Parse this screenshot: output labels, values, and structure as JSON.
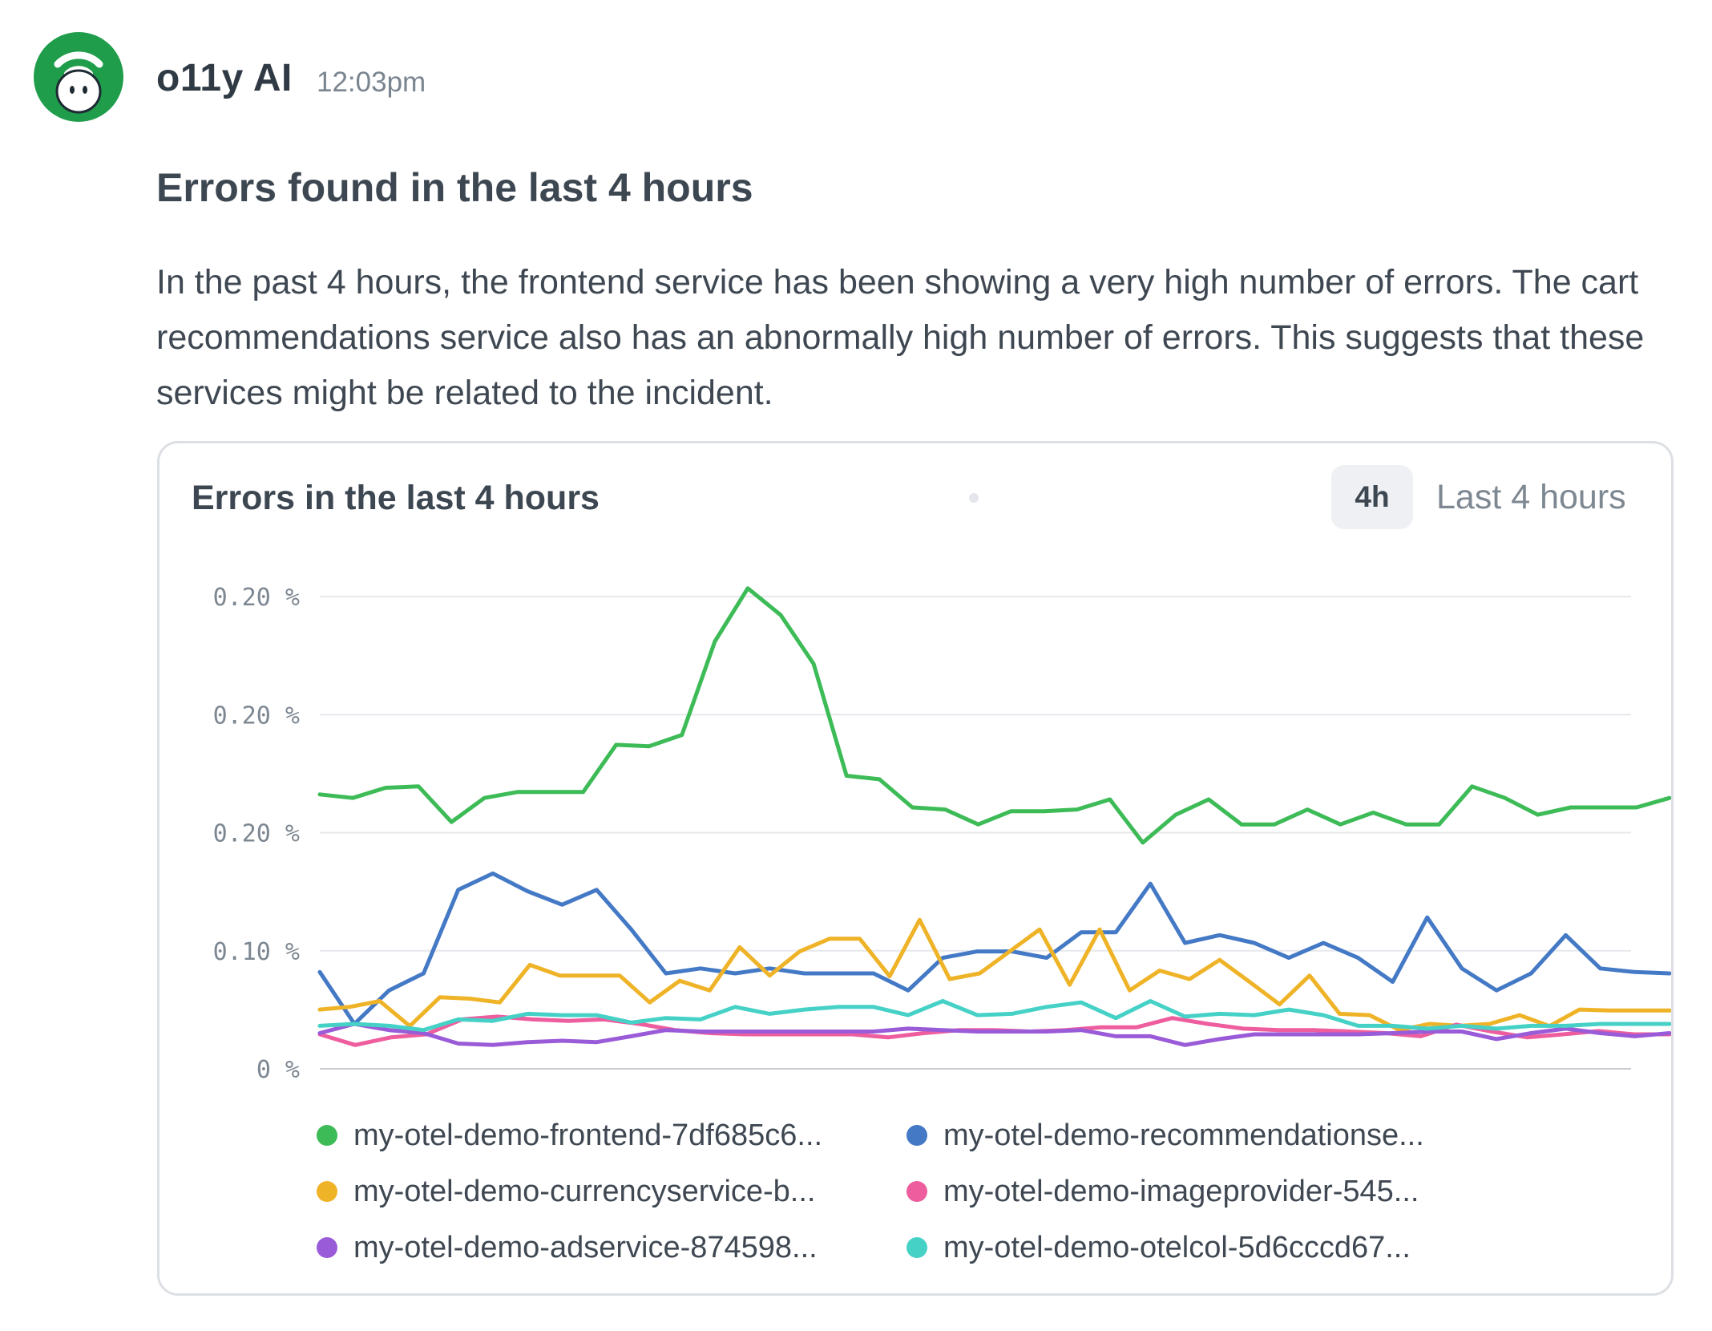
{
  "message": {
    "author": "o11y AI",
    "timestamp": "12:03pm",
    "title": "Errors found in the last 4 hours",
    "body": "In the past 4 hours, the frontend service has been showing a very high number of errors. The cart recommendations service also has an abnormally high number of errors. This suggests that these services might be related to the incident."
  },
  "avatar": {
    "icon": "robot-face-icon",
    "background": "#1f9d4b"
  },
  "card": {
    "title": "Errors in the last 4 hours",
    "range_badge": "4h",
    "range_label": "Last 4 hours"
  },
  "chart_data": {
    "type": "line",
    "title": "Errors in the last 4 hours",
    "y_tick_labels": [
      "0.20 %",
      "0.20 %",
      "0.20 %",
      "0.10 %",
      "0 %"
    ],
    "ylim": [
      0,
      0.2
    ],
    "grid": true,
    "legend_position": "bottom",
    "series": [
      {
        "name": "my-otel-demo-frontend-7df685c6...",
        "color": "#3dbb57",
        "values": [
          0.1162,
          0.1147,
          0.119,
          0.1196,
          0.1045,
          0.1147,
          0.1172,
          0.1172,
          0.1172,
          0.1372,
          0.1366,
          0.1414,
          0.181,
          0.2035,
          0.1922,
          0.1715,
          0.1241,
          0.1226,
          0.1107,
          0.1098,
          0.1035,
          0.1091,
          0.1091,
          0.1098,
          0.1141,
          0.0958,
          0.1076,
          0.1141,
          0.1035,
          0.1035,
          0.1098,
          0.1035,
          0.1085,
          0.1035,
          0.1035,
          0.1196,
          0.1147,
          0.1076,
          0.1107,
          0.1107,
          0.1107,
          0.1147
        ]
      },
      {
        "name": "my-otel-demo-recommendationse...",
        "color": "#4479c6",
        "values": [
          0.041,
          0.019,
          0.0332,
          0.0404,
          0.0758,
          0.0827,
          0.0752,
          0.0695,
          0.0758,
          0.059,
          0.0404,
          0.0425,
          0.0404,
          0.0425,
          0.0404,
          0.0404,
          0.0404,
          0.0332,
          0.047,
          0.0497,
          0.0497,
          0.047,
          0.0578,
          0.0578,
          0.0784,
          0.0533,
          0.0566,
          0.0533,
          0.047,
          0.0533,
          0.047,
          0.0368,
          0.0641,
          0.0425,
          0.0332,
          0.0404,
          0.0566,
          0.0425,
          0.041,
          0.0404
        ]
      },
      {
        "name": "my-otel-demo-currencyservice-b...",
        "color": "#efb328",
        "values": [
          0.0251,
          0.0262,
          0.0287,
          0.0181,
          0.0303,
          0.0297,
          0.0281,
          0.044,
          0.0395,
          0.0395,
          0.0395,
          0.0281,
          0.0373,
          0.0332,
          0.0515,
          0.0395,
          0.0497,
          0.0551,
          0.0551,
          0.0392,
          0.0631,
          0.038,
          0.0404,
          0.0497,
          0.059,
          0.0356,
          0.059,
          0.0332,
          0.0416,
          0.038,
          0.0461,
          0.0368,
          0.0273,
          0.0395,
          0.0233,
          0.0227,
          0.0164,
          0.019,
          0.0182,
          0.019,
          0.0227,
          0.0181,
          0.0251,
          0.0247,
          0.0247,
          0.0247
        ]
      },
      {
        "name": "my-otel-demo-imageprovider-545...",
        "color": "#ee5d9e",
        "values": [
          0.0146,
          0.0101,
          0.0133,
          0.0146,
          0.0209,
          0.0221,
          0.0209,
          0.0203,
          0.0209,
          0.019,
          0.0164,
          0.0151,
          0.0146,
          0.0146,
          0.0146,
          0.0146,
          0.0133,
          0.0151,
          0.0164,
          0.0164,
          0.0158,
          0.0164,
          0.0176,
          0.0176,
          0.0215,
          0.019,
          0.017,
          0.0164,
          0.0164,
          0.0158,
          0.0151,
          0.0138,
          0.0187,
          0.0158,
          0.0133,
          0.0146,
          0.016,
          0.0146,
          0.0146
        ]
      },
      {
        "name": "my-otel-demo-adservice-874598...",
        "color": "#9a5bd8",
        "values": [
          0.0151,
          0.019,
          0.0164,
          0.0151,
          0.0107,
          0.0101,
          0.0113,
          0.0119,
          0.0113,
          0.0138,
          0.0164,
          0.0158,
          0.0158,
          0.0158,
          0.0158,
          0.0158,
          0.0158,
          0.017,
          0.0164,
          0.0158,
          0.0158,
          0.0158,
          0.0164,
          0.0138,
          0.0138,
          0.0101,
          0.0126,
          0.0146,
          0.0146,
          0.0146,
          0.0146,
          0.0151,
          0.0158,
          0.0158,
          0.0126,
          0.0151,
          0.017,
          0.0151,
          0.0138,
          0.0151
        ]
      },
      {
        "name": "my-otel-demo-otelcol-5d6cccd67...",
        "color": "#46d1c7",
        "values": [
          0.0182,
          0.019,
          0.0182,
          0.0164,
          0.0209,
          0.0203,
          0.0233,
          0.0227,
          0.0227,
          0.0196,
          0.0215,
          0.0209,
          0.0262,
          0.0233,
          0.0251,
          0.0262,
          0.0262,
          0.0227,
          0.0287,
          0.0227,
          0.0233,
          0.0262,
          0.0281,
          0.0215,
          0.0287,
          0.0221,
          0.0233,
          0.0227,
          0.0251,
          0.0227,
          0.0182,
          0.0182,
          0.017,
          0.0182,
          0.017,
          0.0182,
          0.0182,
          0.019,
          0.019,
          0.019
        ]
      }
    ]
  }
}
